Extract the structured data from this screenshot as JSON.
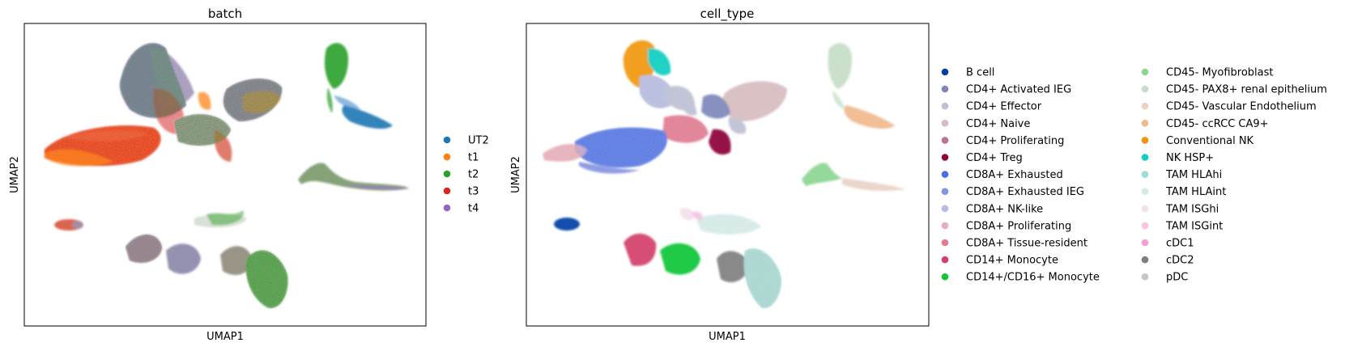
{
  "chart_data": [
    {
      "type": "scatter",
      "title": "batch",
      "xlabel": "UMAP1",
      "ylabel": "UMAP2",
      "ticks": "none",
      "grid": false,
      "legend_position": "right",
      "legend": [
        {
          "label": "UT2",
          "color": "#1f77b4"
        },
        {
          "label": "t1",
          "color": "#ff7f0e"
        },
        {
          "label": "t2",
          "color": "#2ca02c"
        },
        {
          "label": "t3",
          "color": "#d62728"
        },
        {
          "label": "t4",
          "color": "#9467bd"
        }
      ]
    },
    {
      "type": "scatter",
      "title": "cell_type",
      "xlabel": "UMAP1",
      "ylabel": "UMAP2",
      "ticks": "none",
      "grid": false,
      "legend_position": "right",
      "legend": [
        {
          "label": "B cell",
          "color": "#023fa5"
        },
        {
          "label": "CD4+ Activated IEG",
          "color": "#7d87b9"
        },
        {
          "label": "CD4+ Effector",
          "color": "#bec1d4"
        },
        {
          "label": "CD4+ Naive",
          "color": "#d6bcc0"
        },
        {
          "label": "CD4+ Proliferating",
          "color": "#bb7784"
        },
        {
          "label": "CD4+ Treg",
          "color": "#8e063b"
        },
        {
          "label": "CD8A+ Exhausted",
          "color": "#4a6fe3"
        },
        {
          "label": "CD8A+ Exhausted IEG",
          "color": "#8595e1"
        },
        {
          "label": "CD8A+ NK-like",
          "color": "#b5bbe3"
        },
        {
          "label": "CD8A+ Proliferating",
          "color": "#e6afb9"
        },
        {
          "label": "CD8A+ Tissue-resident",
          "color": "#e07b91"
        },
        {
          "label": "CD14+ Monocyte",
          "color": "#d33f6a"
        },
        {
          "label": "CD14+/CD16+ Monocyte",
          "color": "#11c638"
        },
        {
          "label": "CD45- Myofibroblast",
          "color": "#8dd593"
        },
        {
          "label": "CD45- PAX8+ renal epithelium",
          "color": "#c6dec7"
        },
        {
          "label": "CD45- Vascular Endothelium",
          "color": "#ead3c6"
        },
        {
          "label": "CD45- ccRCC CA9+",
          "color": "#f0b98d"
        },
        {
          "label": "Conventional NK",
          "color": "#ef9708"
        },
        {
          "label": "NK HSP+",
          "color": "#0fcfc0"
        },
        {
          "label": "TAM HLAhi",
          "color": "#9cded6"
        },
        {
          "label": "TAM HLAint",
          "color": "#d5eae7"
        },
        {
          "label": "TAM ISGhi",
          "color": "#f3e1eb"
        },
        {
          "label": "TAM ISGint",
          "color": "#f6c4e1"
        },
        {
          "label": "cDC1",
          "color": "#f79cd4"
        },
        {
          "label": "cDC2",
          "color": "#7f7f7f"
        },
        {
          "label": "pDC",
          "color": "#c7c7c7"
        }
      ]
    }
  ]
}
